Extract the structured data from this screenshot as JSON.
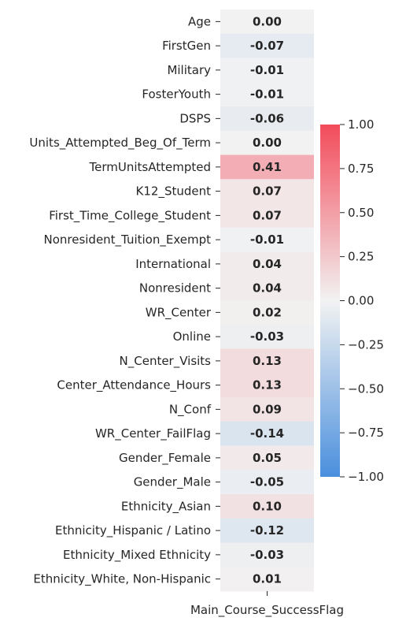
{
  "chart_data": {
    "type": "heatmap",
    "title": "",
    "columns": [
      "Main_Course_SuccessFlag"
    ],
    "rows": [
      "Age",
      "FirstGen",
      "Military",
      "FosterYouth",
      "DSPS",
      "Units_Attempted_Beg_Of_Term",
      "TermUnitsAttempted",
      "K12_Student",
      "First_Time_College_Student",
      "Nonresident_Tuition_Exempt",
      "International",
      "Nonresident",
      "WR_Center",
      "Online",
      "N_Center_Visits",
      "Center_Attendance_Hours",
      "N_Conf",
      "WR_Center_FailFlag",
      "Gender_Female",
      "Gender_Male",
      "Ethnicity_Asian",
      "Ethnicity_Hispanic / Latino",
      "Ethnicity_Mixed Ethnicity",
      "Ethnicity_White, Non-Hispanic"
    ],
    "values": [
      0.0,
      -0.07,
      -0.01,
      -0.01,
      -0.06,
      0.0,
      0.41,
      0.07,
      0.07,
      -0.01,
      0.04,
      0.04,
      0.02,
      -0.03,
      0.13,
      0.13,
      0.09,
      -0.14,
      0.05,
      -0.05,
      0.1,
      -0.12,
      -0.03,
      0.01
    ],
    "value_labels": [
      "0.00",
      "-0.07",
      "-0.01",
      "-0.01",
      "-0.06",
      "0.00",
      "0.41",
      "0.07",
      "0.07",
      "-0.01",
      "0.04",
      "0.04",
      "0.02",
      "-0.03",
      "0.13",
      "0.13",
      "0.09",
      "-0.14",
      "0.05",
      "-0.05",
      "0.10",
      "-0.12",
      "-0.03",
      "0.01"
    ],
    "colorbar": {
      "vmin": -1.0,
      "vmax": 1.0,
      "ticks": [
        1.0,
        0.75,
        0.5,
        0.25,
        0.0,
        -0.25,
        -0.5,
        -0.75,
        -1.0
      ],
      "tick_labels": [
        "1.00",
        "0.75",
        "0.50",
        "0.25",
        "0.00",
        "−0.25",
        "−0.50",
        "−0.75",
        "−1.00"
      ],
      "colors": {
        "low": "#4a8fdd",
        "mid": "#f2f2f2",
        "high": "#f24b5a"
      }
    }
  }
}
